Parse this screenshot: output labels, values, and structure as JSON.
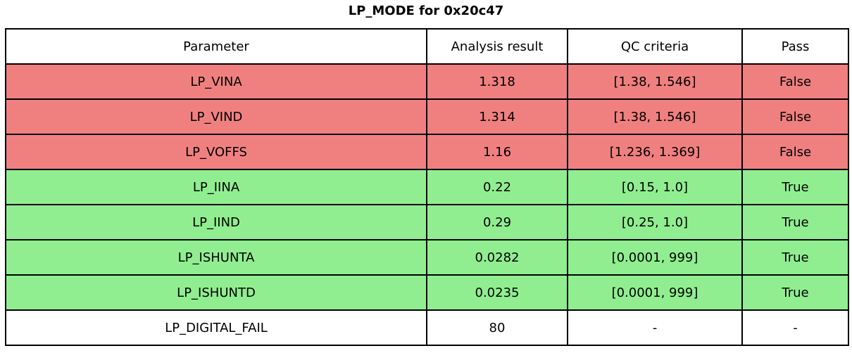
{
  "title": "LP_MODE for 0x20c47",
  "chart_data": {
    "type": "table",
    "title": "LP_MODE for 0x20c47",
    "columns": [
      "Parameter",
      "Analysis result",
      "QC criteria",
      "Pass"
    ],
    "rows": [
      {
        "parameter": "LP_VINA",
        "analysis_result": "1.318",
        "qc_criteria": "[1.38, 1.546]",
        "pass": "False",
        "status": "fail"
      },
      {
        "parameter": "LP_VIND",
        "analysis_result": "1.314",
        "qc_criteria": "[1.38, 1.546]",
        "pass": "False",
        "status": "fail"
      },
      {
        "parameter": "LP_VOFFS",
        "analysis_result": "1.16",
        "qc_criteria": "[1.236, 1.369]",
        "pass": "False",
        "status": "fail"
      },
      {
        "parameter": "LP_IINA",
        "analysis_result": "0.22",
        "qc_criteria": "[0.15, 1.0]",
        "pass": "True",
        "status": "pass"
      },
      {
        "parameter": "LP_IIND",
        "analysis_result": "0.29",
        "qc_criteria": "[0.25, 1.0]",
        "pass": "True",
        "status": "pass"
      },
      {
        "parameter": "LP_ISHUNTA",
        "analysis_result": "0.0282",
        "qc_criteria": "[0.0001, 999]",
        "pass": "True",
        "status": "pass"
      },
      {
        "parameter": "LP_ISHUNTD",
        "analysis_result": "0.0235",
        "qc_criteria": "[0.0001, 999]",
        "pass": "True",
        "status": "pass"
      },
      {
        "parameter": "LP_DIGITAL_FAIL",
        "analysis_result": "80",
        "qc_criteria": "-",
        "pass": "-",
        "status": "neutral"
      }
    ]
  },
  "colors": {
    "fail_row": "#f08080",
    "pass_row": "#90ee90",
    "neutral_row": "#ffffff",
    "border": "#000000",
    "text": "#000000"
  }
}
